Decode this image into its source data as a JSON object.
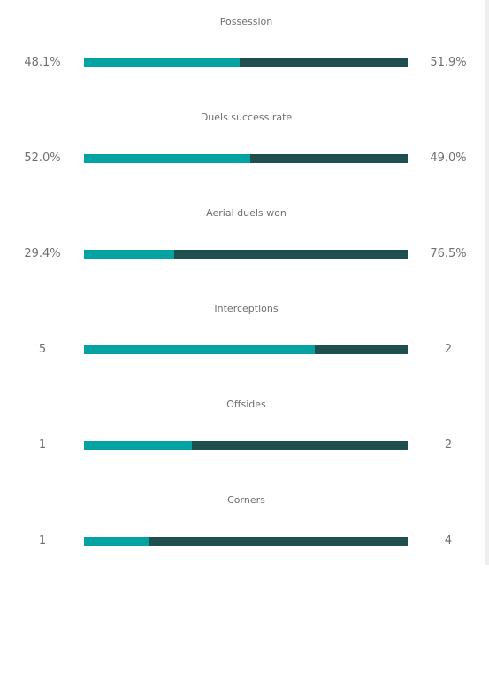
{
  "colors": {
    "home": "#03a3a3",
    "away": "#1e5050"
  },
  "stats": [
    {
      "label": "Possession",
      "home_value": "48.1%",
      "away_value": "51.9%",
      "home_share": 0.481
    },
    {
      "label": "Duels success rate",
      "home_value": "52.0%",
      "away_value": "49.0%",
      "home_share": 0.5149
    },
    {
      "label": "Aerial duels won",
      "home_value": "29.4%",
      "away_value": "76.5%",
      "home_share": 0.2776
    },
    {
      "label": "Interceptions",
      "home_value": "5",
      "away_value": "2",
      "home_share": 0.7143
    },
    {
      "label": "Offsides",
      "home_value": "1",
      "away_value": "2",
      "home_share": 0.3333
    },
    {
      "label": "Corners",
      "home_value": "1",
      "away_value": "4",
      "home_share": 0.2
    }
  ]
}
